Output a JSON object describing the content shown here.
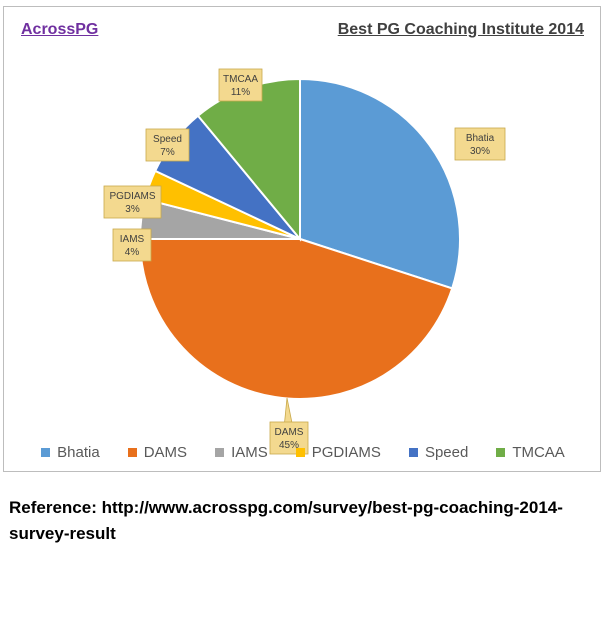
{
  "brand": "AcrossPG",
  "reference": "Reference: http://www.acrosspg.com/survey/best-pg-coaching-2014-survey-result",
  "chart_data": {
    "type": "pie",
    "title": "Best PG Coaching Institute 2014",
    "categories": [
      "Bhatia",
      "DAMS",
      "IAMS",
      "PGDIAMS",
      "Speed",
      "TMCAA"
    ],
    "values": [
      30,
      45,
      4,
      3,
      7,
      11
    ],
    "data_labels": [
      "30%",
      "45%",
      "4%",
      "3%",
      "7%",
      "11%"
    ],
    "colors": [
      "#5b9bd5",
      "#e8701c",
      "#a5a5a5",
      "#ffc000",
      "#4472c4",
      "#70ad47"
    ],
    "legend_position": "bottom"
  }
}
